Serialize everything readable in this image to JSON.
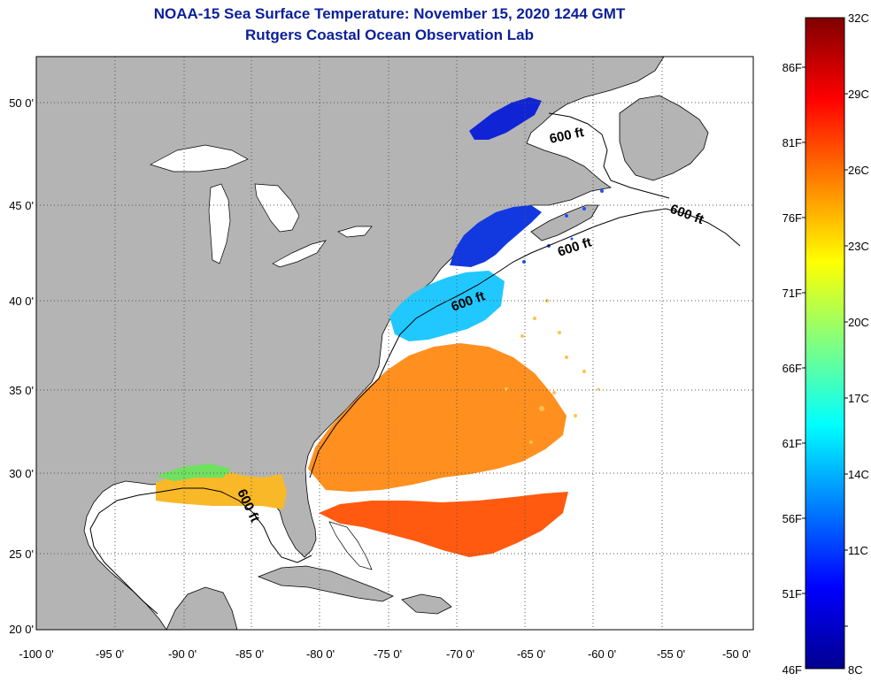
{
  "header": {
    "title": "NOAA-15 Sea Surface Temperature:  November 15, 2020 1244 GMT",
    "subtitle": "Rutgers Coastal Ocean Observation Lab"
  },
  "map": {
    "lon_ticks": [
      "-100 0'",
      "-95 0'",
      "-90 0'",
      "-85 0'",
      "-80 0'",
      "-75 0'",
      "-70 0'",
      "-65 0'",
      "-60 0'",
      "-55 0'",
      "-50 0'"
    ],
    "lat_ticks": [
      "50 0'",
      "45 0'",
      "40 0'",
      "35 0'",
      "30 0'",
      "25 0'",
      "20 0'"
    ],
    "contour_labels": [
      "600 ft",
      "600 ft",
      "600 ft",
      "600 ft",
      "600 ft"
    ],
    "colors": {
      "land": "#b4b4b4",
      "no_data": "#ffffff",
      "grid": "#555555"
    }
  },
  "colorbar": {
    "f_labels": [
      "86F",
      "81F",
      "76F",
      "71F",
      "66F",
      "61F",
      "56F",
      "51F",
      "46F"
    ],
    "c_labels": [
      "32C",
      "29C",
      "26C",
      "23C",
      "20C",
      "17C",
      "14C",
      "11C",
      "8C"
    ],
    "stops": [
      "#00008f",
      "#0000ff",
      "#0080ff",
      "#00ffff",
      "#80ff80",
      "#ffff00",
      "#ff8000",
      "#ff0000",
      "#800000"
    ]
  }
}
